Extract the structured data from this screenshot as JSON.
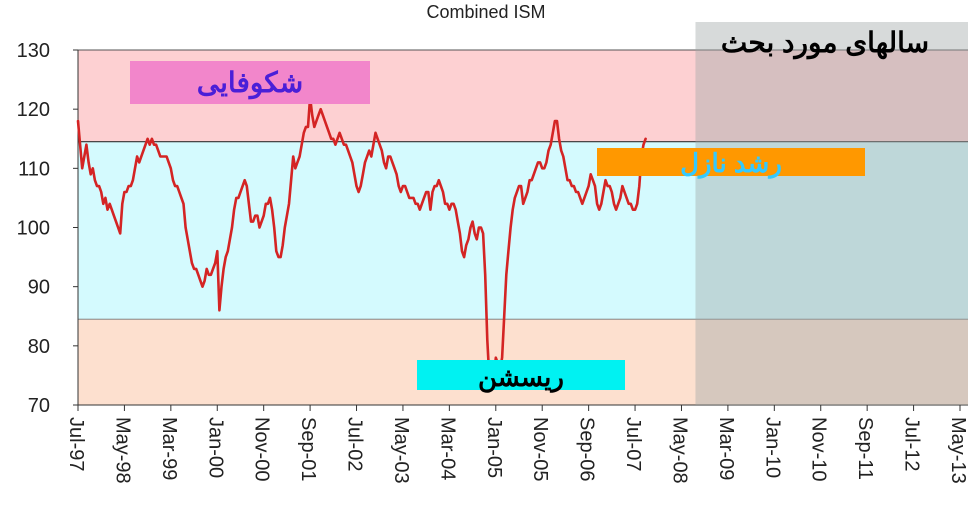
{
  "chart_data": {
    "type": "line",
    "title": "Combined ISM",
    "ylim": [
      70,
      130
    ],
    "yticks": [
      "130",
      "120",
      "110",
      "100",
      "90",
      "80",
      "70"
    ],
    "xticks": [
      "Jul-97",
      "May-98",
      "Mar-99",
      "Jan-00",
      "Nov-00",
      "Sep-01",
      "Jul-02",
      "May-03",
      "Mar-04",
      "Jan-05",
      "Nov-05",
      "Sep-06",
      "Jul-07",
      "May-08",
      "Mar-09",
      "Jan-10",
      "Nov-10",
      "Sep-11",
      "Jul-12",
      "May-13"
    ],
    "x_start_month": "1997-07",
    "series": [
      {
        "color": "#d42424",
        "values": [
          118,
          114,
          110,
          112,
          114,
          111,
          109,
          110,
          108,
          107,
          107,
          106,
          104,
          105,
          103,
          104,
          103,
          102,
          101,
          100,
          99,
          104,
          106,
          106,
          107,
          107,
          108,
          110,
          112,
          111,
          112,
          113,
          114,
          115,
          114,
          115,
          114,
          114,
          113,
          112,
          112,
          112,
          112,
          111,
          110,
          108,
          107,
          107,
          106,
          105,
          104,
          100,
          98,
          96,
          94,
          93,
          93,
          92,
          91,
          90,
          91,
          93,
          92,
          92,
          93,
          94,
          96,
          86,
          90,
          93,
          95,
          96,
          98,
          100,
          103,
          105,
          105,
          106,
          107,
          108,
          107,
          104,
          101,
          101,
          102,
          102,
          100,
          101,
          102,
          104,
          104,
          105,
          103,
          100,
          96,
          95,
          95,
          97,
          100,
          102,
          104,
          108,
          112,
          110,
          111,
          112,
          114,
          116,
          117,
          117,
          122,
          119,
          117,
          118,
          119,
          120,
          119,
          118,
          117,
          116,
          115,
          115,
          114,
          115,
          116,
          115,
          114,
          114,
          113,
          112,
          111,
          109,
          107,
          106,
          107,
          109,
          111,
          112,
          113,
          112,
          114,
          116,
          115,
          114,
          113,
          111,
          110,
          112,
          112,
          111,
          110,
          109,
          107,
          106,
          107,
          107,
          106,
          105,
          105,
          105,
          104,
          104,
          103,
          104,
          105,
          106,
          106,
          103,
          106,
          107,
          107,
          108,
          107,
          106,
          104,
          104,
          103,
          104,
          104,
          103,
          101,
          99,
          96,
          95,
          97,
          98,
          100,
          101,
          99,
          98,
          100,
          100,
          99,
          92,
          81,
          74,
          73,
          74,
          78,
          77,
          76,
          78,
          85,
          92,
          96,
          100,
          103,
          105,
          106,
          107,
          107,
          104,
          105,
          106,
          108,
          108,
          109,
          110,
          111,
          111,
          110,
          110,
          111,
          113,
          114,
          116,
          118,
          118,
          115,
          113,
          112,
          110,
          108,
          108,
          107,
          107,
          106,
          106,
          105,
          104,
          105,
          106,
          107,
          109,
          108,
          107,
          104,
          103,
          104,
          106,
          108,
          107,
          107,
          106,
          104,
          103,
          104,
          105,
          107,
          106,
          105,
          104,
          104,
          103,
          103,
          104,
          107,
          112,
          114,
          115
        ]
      }
    ],
    "bands": [
      {
        "from": 114.5,
        "to": 130,
        "color": "#fdd0d2"
      },
      {
        "from": 84.5,
        "to": 114.5,
        "color": "#d4fafe"
      },
      {
        "from": 70,
        "to": 84.5,
        "color": "#fde0cf"
      }
    ],
    "highlight": {
      "from_tick": "May-08",
      "color": "#9fa8a8"
    },
    "annotations": [
      {
        "text": "شکوفایی",
        "bg": "#f286cb",
        "color": "#4a1fd8"
      },
      {
        "text": "رشد نازل",
        "bg": "#ff9800",
        "color": "#33c9ff"
      },
      {
        "text": "ریسشن",
        "bg": "#00f2f2",
        "color": "#000000"
      },
      {
        "text": "سالهای مورد بحث",
        "bg": "none",
        "color": "#000000"
      }
    ]
  }
}
